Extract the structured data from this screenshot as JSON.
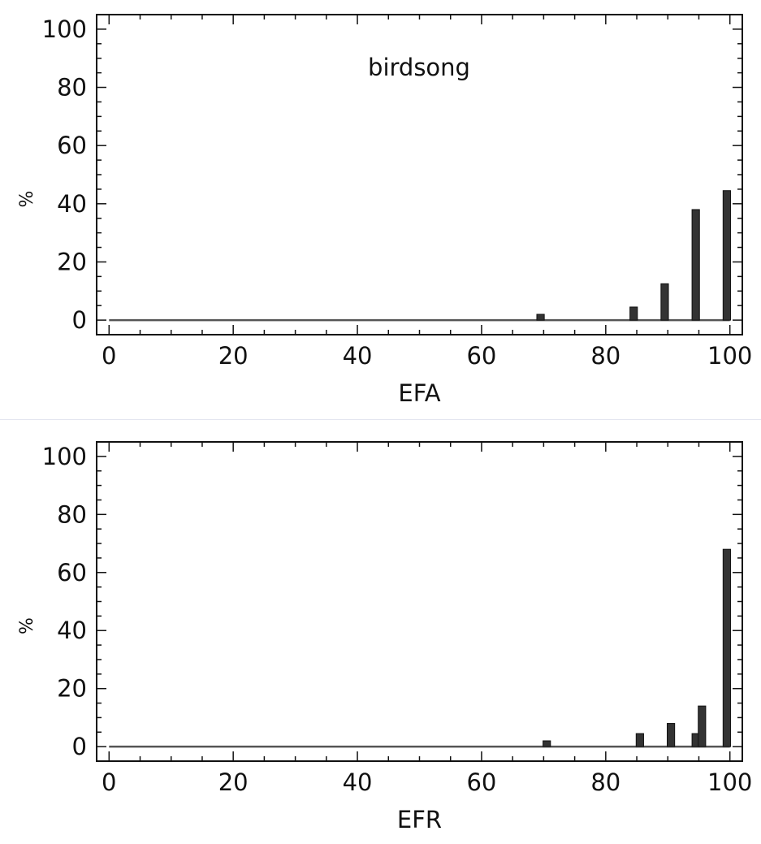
{
  "chart_data": [
    {
      "type": "bar",
      "annotation": "birdsong",
      "xlabel": "EFA",
      "ylabel": "%",
      "xlim": [
        -2,
        102
      ],
      "ylim": [
        -5,
        105
      ],
      "xticks": [
        0,
        20,
        40,
        60,
        80,
        100
      ],
      "yticks": [
        0,
        20,
        40,
        60,
        80,
        100
      ],
      "bar_width": 1.2,
      "bars": [
        {
          "x": 69.5,
          "y": 2
        },
        {
          "x": 84.5,
          "y": 4.5
        },
        {
          "x": 89.5,
          "y": 12.5
        },
        {
          "x": 94.5,
          "y": 38
        },
        {
          "x": 99.5,
          "y": 44.5
        }
      ]
    },
    {
      "type": "bar",
      "annotation": "",
      "xlabel": "EFR",
      "ylabel": "%",
      "xlim": [
        -2,
        102
      ],
      "ylim": [
        -5,
        105
      ],
      "xticks": [
        0,
        20,
        40,
        60,
        80,
        100
      ],
      "yticks": [
        0,
        20,
        40,
        60,
        80,
        100
      ],
      "bar_width": 1.2,
      "bars": [
        {
          "x": 70.5,
          "y": 2
        },
        {
          "x": 85.5,
          "y": 4.5
        },
        {
          "x": 90.5,
          "y": 8
        },
        {
          "x": 94.5,
          "y": 4.5
        },
        {
          "x": 95.5,
          "y": 14
        },
        {
          "x": 99.5,
          "y": 68
        }
      ]
    }
  ],
  "style": {
    "bar_color": "#333333",
    "axis_color": "#111111",
    "baseline_color": "#555555"
  }
}
